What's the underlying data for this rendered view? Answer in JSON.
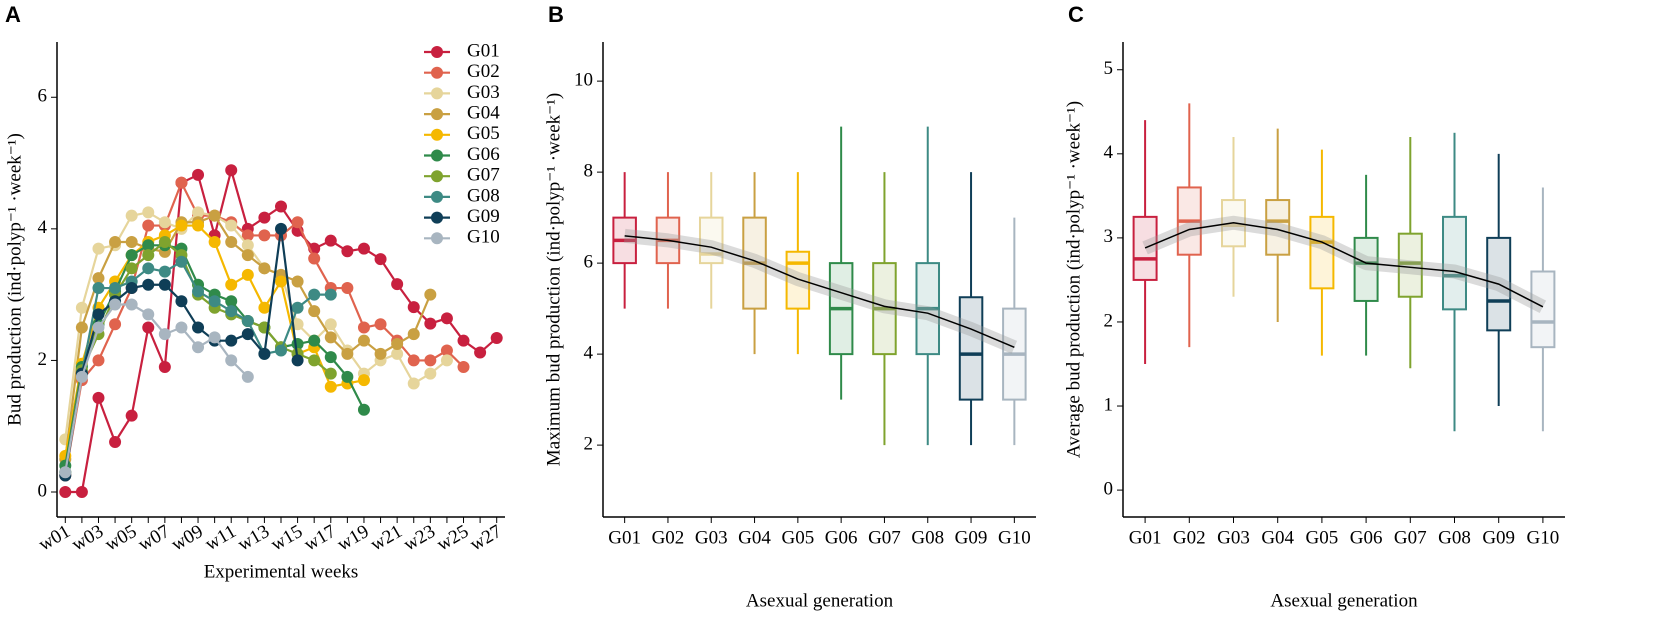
{
  "chart_data": [
    {
      "type": "line",
      "panel_label": "A",
      "xlabel": "Experimental weeks",
      "ylabel": "Bud production (ind·polyp⁻¹ ·week⁻¹)",
      "categories": [
        "w01",
        null,
        "w03",
        null,
        "w05",
        null,
        "w07",
        null,
        "w09",
        null,
        "w11",
        null,
        "w13",
        null,
        "w15",
        null,
        "w17",
        null,
        "w19",
        null,
        "w21",
        null,
        "w23",
        null,
        "w25",
        null,
        "w27"
      ],
      "ylim": [
        -0.38,
        6.84
      ],
      "yticks": [
        0,
        2,
        4,
        6
      ],
      "legend": "top-right",
      "series": [
        {
          "name": "G01",
          "color": "#c8203f",
          "values": [
            0,
            0,
            1.43,
            0.76,
            1.16,
            2.5,
            1.9,
            4.7,
            4.82,
            3.9,
            4.89,
            4.0,
            4.17,
            4.34,
            3.97,
            3.7,
            3.82,
            3.66,
            3.7,
            3.54,
            3.16,
            2.81,
            2.56,
            2.64,
            2.3,
            2.12,
            2.34
          ]
        },
        {
          "name": "G02",
          "color": "#e0634e",
          "values": [
            0.25,
            1.7,
            2.0,
            2.55,
            3.1,
            4.05,
            4.05,
            4.7,
            4.2,
            4.2,
            4.1,
            3.9,
            3.9,
            3.9,
            4.1,
            3.55,
            3.1,
            3.1,
            2.5,
            2.55,
            2.3,
            2.0,
            2.0,
            2.15,
            1.9,
            null,
            null
          ]
        },
        {
          "name": "G03",
          "color": "#e6d59b",
          "values": [
            0.8,
            2.8,
            3.7,
            3.75,
            4.2,
            4.25,
            4.1,
            4.0,
            4.25,
            4.2,
            4.05,
            3.75,
            3.4,
            3.3,
            2.55,
            2.3,
            2.55,
            2.15,
            1.8,
            2.0,
            2.1,
            1.65,
            1.8,
            2.0,
            null,
            null,
            null
          ]
        },
        {
          "name": "G04",
          "color": "#c9a042",
          "values": [
            0.5,
            2.5,
            3.25,
            3.8,
            3.8,
            3.7,
            3.65,
            4.1,
            4.1,
            4.2,
            3.8,
            3.6,
            3.4,
            3.3,
            3.2,
            2.75,
            2.35,
            2.1,
            2.3,
            2.1,
            2.25,
            2.4,
            3.0,
            null,
            null,
            null,
            null
          ]
        },
        {
          "name": "G05",
          "color": "#f5b800",
          "values": [
            0.55,
            1.95,
            2.8,
            3.2,
            3.6,
            3.8,
            3.9,
            4.05,
            4.05,
            3.8,
            3.15,
            3.3,
            2.8,
            3.2,
            2.1,
            2.2,
            1.6,
            1.65,
            1.7,
            null,
            null,
            null,
            null,
            null,
            null,
            null,
            null
          ]
        },
        {
          "name": "G06",
          "color": "#2f8a4a",
          "values": [
            0.4,
            1.9,
            2.55,
            3.05,
            3.6,
            3.75,
            3.75,
            3.7,
            3.15,
            3.0,
            2.9,
            2.6,
            2.5,
            2.2,
            2.25,
            2.3,
            2.05,
            1.75,
            1.25,
            null,
            null,
            null,
            null,
            null,
            null,
            null,
            null
          ]
        },
        {
          "name": "G07",
          "color": "#7fa32e",
          "values": [
            0.3,
            1.85,
            2.4,
            3.0,
            3.4,
            3.6,
            3.8,
            3.6,
            3.0,
            2.8,
            2.7,
            2.6,
            2.5,
            2.2,
            2.1,
            2.0,
            1.8,
            null,
            null,
            null,
            null,
            null,
            null,
            null,
            null,
            null,
            null
          ]
        },
        {
          "name": "G08",
          "color": "#3d8a84",
          "values": [
            0.3,
            1.8,
            3.1,
            3.1,
            3.2,
            3.4,
            3.35,
            3.5,
            3.05,
            2.9,
            2.75,
            2.6,
            2.1,
            2.15,
            2.8,
            3.0,
            3.0,
            null,
            null,
            null,
            null,
            null,
            null,
            null,
            null,
            null,
            null
          ]
        },
        {
          "name": "G09",
          "color": "#0f3e57",
          "values": [
            0.25,
            1.8,
            2.7,
            2.9,
            3.1,
            3.15,
            3.15,
            2.9,
            2.5,
            2.3,
            2.3,
            2.4,
            2.1,
            4.0,
            2.0,
            null,
            null,
            null,
            null,
            null,
            null,
            null,
            null,
            null,
            null,
            null,
            null
          ]
        },
        {
          "name": "G10",
          "color": "#a8b5c0",
          "values": [
            0.3,
            1.75,
            2.5,
            2.85,
            2.85,
            2.7,
            2.4,
            2.5,
            2.2,
            2.35,
            2.0,
            1.75,
            null,
            null,
            null,
            null,
            null,
            null,
            null,
            null,
            null,
            null,
            null,
            null,
            null,
            null,
            null
          ]
        }
      ]
    },
    {
      "type": "box",
      "panel_label": "B",
      "xlabel": "Asexual generation",
      "ylabel": "Maximum bud production (ind·polyp⁻¹ ·week⁻¹)",
      "categories": [
        "G01",
        "G02",
        "G03",
        "G04",
        "G05",
        "G06",
        "G07",
        "G08",
        "G09",
        "G10"
      ],
      "colors": [
        "#c8203f",
        "#e0634e",
        "#e6d59b",
        "#c9a042",
        "#f5b800",
        "#2f8a4a",
        "#7fa32e",
        "#3d8a84",
        "#0f3e57",
        "#a8b5c0"
      ],
      "ylim": [
        0.42,
        10.86
      ],
      "yticks": [
        2,
        4,
        6,
        8,
        10
      ],
      "q1": [
        6,
        6,
        6,
        5,
        5,
        4,
        4,
        4,
        3,
        3
      ],
      "median": [
        6.5,
        6.5,
        6.2,
        6,
        6,
        5,
        5,
        5,
        4,
        4
      ],
      "q3": [
        7,
        7,
        7,
        7,
        6.25,
        6,
        6,
        6,
        5.25,
        5
      ],
      "whisker_low": [
        5,
        5,
        5,
        4,
        4,
        3,
        2,
        2,
        2,
        2
      ],
      "whisker_high": [
        8,
        8,
        8,
        8,
        8,
        9,
        8,
        9,
        8,
        7
      ],
      "trend": [
        6.6,
        6.5,
        6.35,
        6.05,
        5.65,
        5.35,
        5.05,
        4.9,
        4.55,
        4.15
      ]
    },
    {
      "type": "box",
      "panel_label": "C",
      "xlabel": "Asexual generation",
      "ylabel": "Average bud production (ind·polyp⁻¹ ·week⁻¹)",
      "categories": [
        "G01",
        "G02",
        "G03",
        "G04",
        "G05",
        "G06",
        "G07",
        "G08",
        "G09",
        "G10"
      ],
      "colors": [
        "#c8203f",
        "#e0634e",
        "#e6d59b",
        "#c9a042",
        "#f5b800",
        "#2f8a4a",
        "#7fa32e",
        "#3d8a84",
        "#0f3e57",
        "#a8b5c0"
      ],
      "ylim": [
        -0.32,
        5.33
      ],
      "yticks": [
        0,
        1,
        2,
        3,
        4,
        5
      ],
      "q1": [
        2.5,
        2.8,
        2.9,
        2.8,
        2.4,
        2.25,
        2.3,
        2.15,
        1.9,
        1.7
      ],
      "median": [
        2.75,
        3.2,
        3.15,
        3.2,
        2.95,
        2.7,
        2.7,
        2.55,
        2.25,
        2.0
      ],
      "q3": [
        3.25,
        3.6,
        3.45,
        3.45,
        3.25,
        3.0,
        3.05,
        3.25,
        3.0,
        2.6
      ],
      "whisker_low": [
        1.5,
        1.7,
        2.3,
        2.0,
        1.6,
        1.6,
        1.45,
        0.7,
        1.0,
        0.7
      ],
      "whisker_high": [
        4.4,
        4.6,
        4.2,
        4.3,
        4.05,
        3.75,
        4.2,
        4.25,
        4.0,
        3.6
      ],
      "trend": [
        2.88,
        3.1,
        3.18,
        3.1,
        2.95,
        2.7,
        2.65,
        2.6,
        2.45,
        2.18
      ]
    }
  ]
}
